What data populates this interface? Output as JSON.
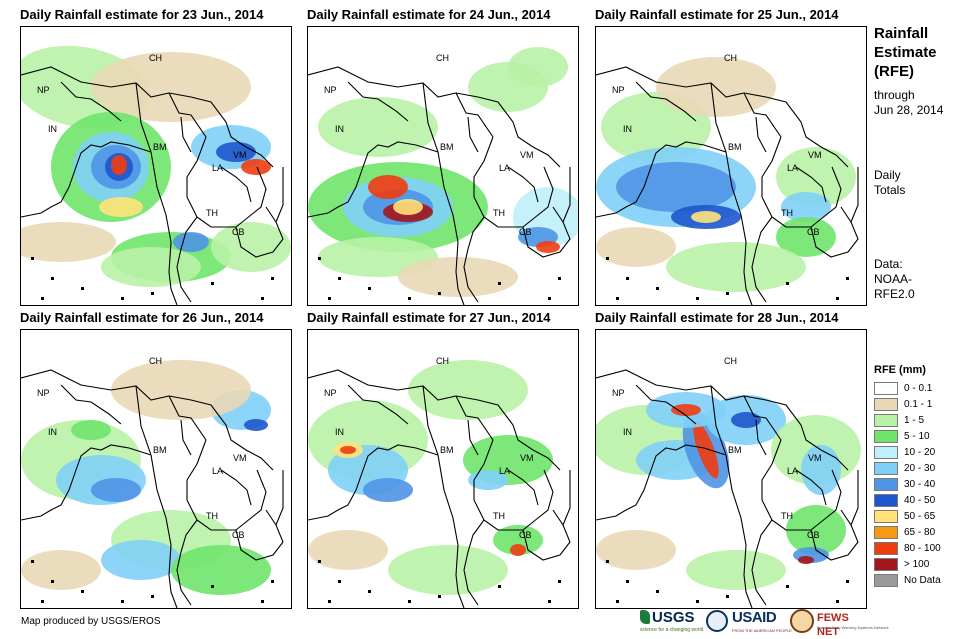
{
  "panels": [
    {
      "title": "Daily Rainfall estimate for 23 Jun., 2014",
      "intensity": "high-west"
    },
    {
      "title": "Daily Rainfall estimate for 24 Jun., 2014",
      "intensity": "high-center"
    },
    {
      "title": "Daily Rainfall estimate for 25 Jun., 2014",
      "intensity": "moderate"
    },
    {
      "title": "Daily Rainfall estimate for 26 Jun., 2014",
      "intensity": "light"
    },
    {
      "title": "Daily Rainfall estimate for 27 Jun., 2014",
      "intensity": "moderate-west"
    },
    {
      "title": "Daily Rainfall estimate for 28 Jun., 2014",
      "intensity": "high-coast"
    }
  ],
  "country_labels": {
    "ch": "CH",
    "np": "NP",
    "in": "IN",
    "bm": "BM",
    "la": "LA",
    "vm": "VM",
    "th": "TH",
    "cb": "CB"
  },
  "sidebar": {
    "title_line1": "Rainfall",
    "title_line2": "Estimate",
    "title_line3": "(RFE)",
    "through_label": "through",
    "through_date": "Jun 28, 2014",
    "totals_line1": "Daily",
    "totals_line2": "Totals",
    "data_line1": "Data:",
    "data_line2": "NOAA-",
    "data_line3": "RFE2.0"
  },
  "legend": {
    "title": "RFE (mm)",
    "items": [
      {
        "label": "0 - 0.1",
        "color": "#ffffff"
      },
      {
        "label": "0.1 - 1",
        "color": "#e9d8b6"
      },
      {
        "label": "1 - 5",
        "color": "#b8f2a6"
      },
      {
        "label": "5 - 10",
        "color": "#6fe46b"
      },
      {
        "label": "10 - 20",
        "color": "#bff0fb"
      },
      {
        "label": "20 - 30",
        "color": "#7fd0f7"
      },
      {
        "label": "30 - 40",
        "color": "#4f95e6"
      },
      {
        "label": "40 - 50",
        "color": "#1d56cc"
      },
      {
        "label": "50 - 65",
        "color": "#ffe27a"
      },
      {
        "label": "65 - 80",
        "color": "#f59a16"
      },
      {
        "label": "80 - 100",
        "color": "#ef3d11"
      },
      {
        "label": "> 100",
        "color": "#a3161c"
      },
      {
        "label": "No Data",
        "color": "#9a9a9a"
      }
    ]
  },
  "credit": "Map produced by USGS/EROS",
  "logos": {
    "usgs": "USGS",
    "usgs_tagline": "science for a changing world",
    "usaid": "USAID",
    "usaid_tagline": "FROM THE AMERICAN PEOPLE",
    "fews": "FEWS NET",
    "fews_tagline": "Famine Early Warning Systems Network"
  }
}
